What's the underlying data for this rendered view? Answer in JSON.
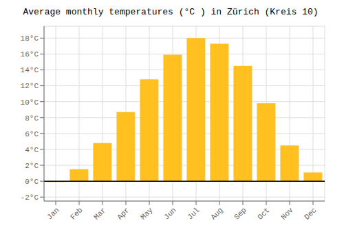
{
  "chart_data": {
    "type": "bar",
    "title": "Average monthly temperatures (°C ) in Zürich (Kreis 10)",
    "categories": [
      "Jan",
      "Feb",
      "Mar",
      "Apr",
      "May",
      "Jun",
      "Jul",
      "Aug",
      "Sep",
      "Oct",
      "Nov",
      "Dec"
    ],
    "values": [
      -0.1,
      1.5,
      4.8,
      8.7,
      12.8,
      15.9,
      18.0,
      17.3,
      14.5,
      9.8,
      4.5,
      1.1
    ],
    "color": "#FFC020",
    "ylim": [
      -2.5,
      19.5
    ],
    "yticks": [
      {
        "value": -2,
        "label": "-2°C"
      },
      {
        "value": 0,
        "label": "0°C"
      },
      {
        "value": 2,
        "label": "2°C"
      },
      {
        "value": 4,
        "label": "4°C"
      },
      {
        "value": 6,
        "label": "6°C"
      },
      {
        "value": 8,
        "label": "8°C"
      },
      {
        "value": 10,
        "label": "10°C"
      },
      {
        "value": 12,
        "label": "12°C"
      },
      {
        "value": 14,
        "label": "14°C"
      },
      {
        "value": 16,
        "label": "16°C"
      },
      {
        "value": 18,
        "label": "18°C"
      }
    ],
    "grid": true
  }
}
